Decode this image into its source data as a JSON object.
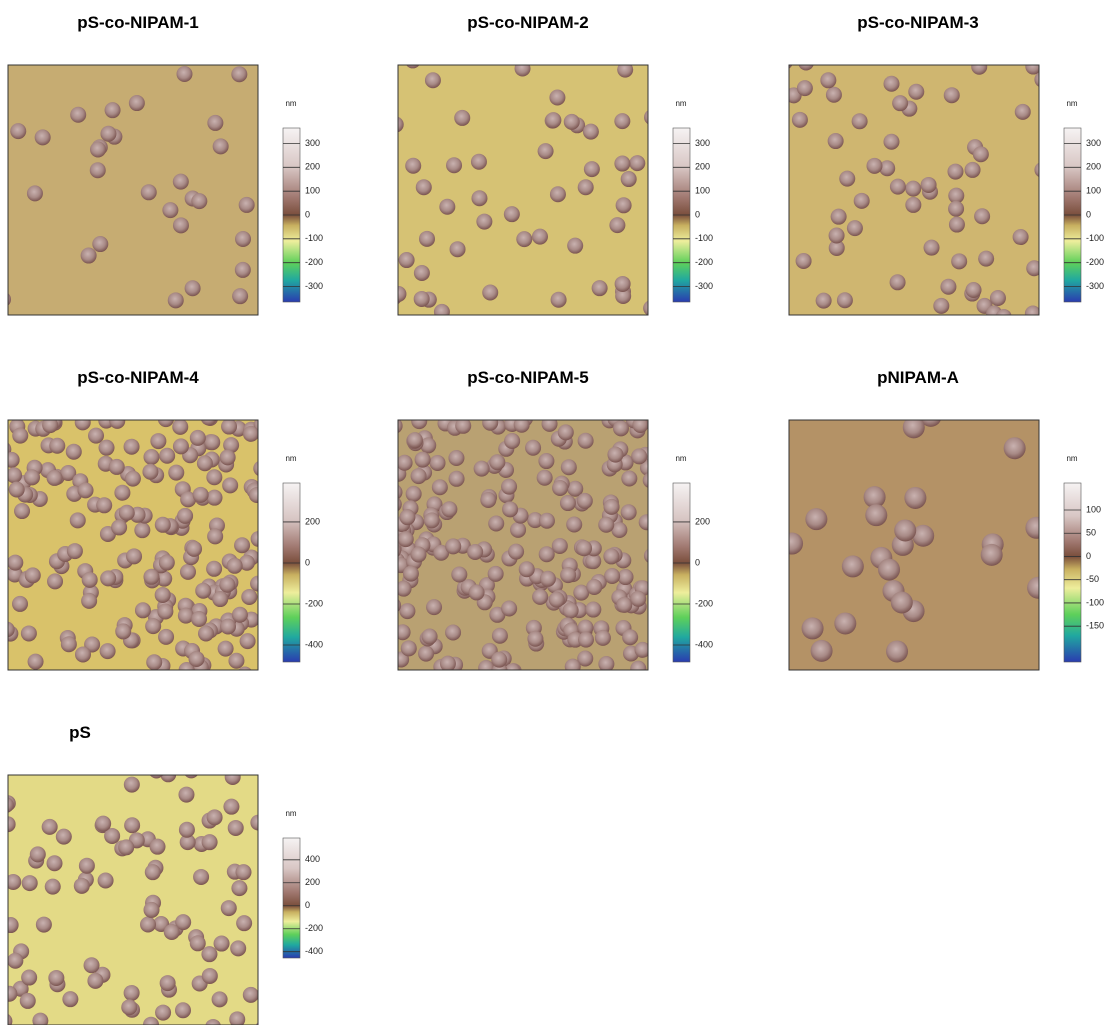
{
  "panels": [
    {
      "title": "pS-co-NIPAM-1",
      "unit": "nm",
      "ylim": [
        -365,
        365
      ],
      "yticks": [
        300,
        200,
        100,
        0,
        -100,
        -200,
        -300
      ]
    },
    {
      "title": "pS-co-NIPAM-2",
      "unit": "nm",
      "ylim": [
        -365,
        365
      ],
      "yticks": [
        300,
        200,
        100,
        0,
        -100,
        -200,
        -300
      ]
    },
    {
      "title": "pS-co-NIPAM-3",
      "unit": "nm",
      "ylim": [
        -365,
        365
      ],
      "yticks": [
        300,
        200,
        100,
        0,
        -100,
        -200,
        -300
      ]
    },
    {
      "title": "pS-co-NIPAM-4",
      "unit": "nm",
      "ylim": [
        -483,
        390
      ],
      "yticks": [
        200,
        0,
        -200,
        -400
      ]
    },
    {
      "title": "pS-co-NIPAM-5",
      "unit": "nm",
      "ylim": [
        -483,
        390
      ],
      "yticks": [
        200,
        0,
        -200,
        -400
      ]
    },
    {
      "title": "pNIPAM-A",
      "unit": "nm",
      "ylim": [
        -227,
        158
      ],
      "yticks": [
        100,
        50,
        0,
        -50,
        -100,
        -150
      ]
    },
    {
      "title": "pS",
      "unit": "nm",
      "ylim": [
        -455,
        590
      ],
      "yticks": [
        400,
        200,
        0,
        -200,
        -400
      ]
    }
  ]
}
